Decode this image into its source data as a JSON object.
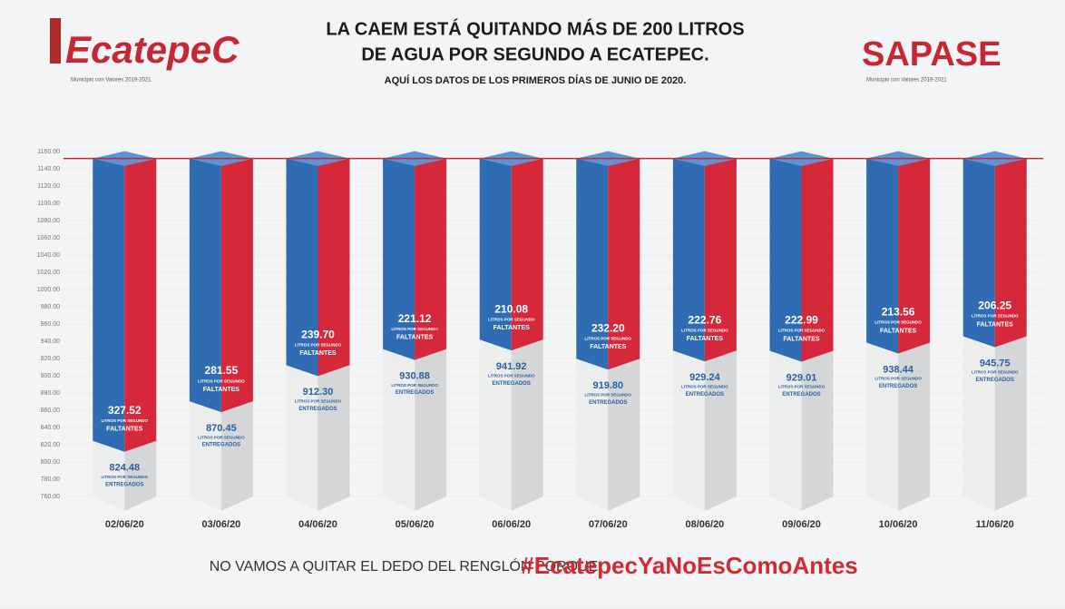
{
  "header": {
    "title_lines": [
      "LA CAEM ESTÁ QUITANDO MÁS DE 200 LITROS",
      "DE AGUA POR SEGUNDO A ECATEPEC."
    ],
    "subtitle": "AQUÍ LOS DATOS DE LOS PRIMEROS DÍAS DE JUNIO DE 2020.",
    "left_logo": {
      "name": "EcatepeC",
      "tagline": "Municipio con Valores 2019-2021"
    },
    "right_logo": {
      "name": "SAPASE",
      "tagline": "Municipio con Valores 2019-2021"
    }
  },
  "chart_data": {
    "type": "stacked-bar-3d",
    "categories": [
      "02/06/20",
      "03/06/20",
      "04/06/20",
      "05/06/20",
      "06/06/20",
      "07/06/20",
      "08/06/20",
      "09/06/20",
      "10/06/20",
      "11/06/20"
    ],
    "unit_label": "LITROS POR SEGUNDO",
    "series": [
      {
        "name": "ENTREGADOS",
        "color": "#d4d6d8",
        "values": [
          824.48,
          870.45,
          912.3,
          930.88,
          941.92,
          919.8,
          929.24,
          929.01,
          938.44,
          945.75
        ],
        "value_labels": [
          "824.48",
          "870.45",
          "912.30",
          "930.88",
          "941.92",
          "919.80",
          "929.24",
          "929.01",
          "938.44",
          "945.75"
        ]
      },
      {
        "name": "FALTANTES",
        "colors": [
          "#2f6cb4",
          "#d6283b"
        ],
        "values": [
          327.52,
          281.55,
          239.7,
          221.12,
          210.08,
          232.2,
          222.76,
          222.99,
          213.56,
          206.25
        ],
        "value_labels": [
          "327.52",
          "281.55",
          "239.70",
          "221.12",
          "210.08",
          "232.20",
          "222.76",
          "222.99",
          "213.56",
          "206.25"
        ]
      }
    ],
    "ylim": [
      760,
      1160
    ],
    "yticks": [
      {
        "value": 1160,
        "label": "1160.00"
      },
      {
        "value": 1140,
        "label": "1140.00"
      },
      {
        "value": 1120,
        "label": "1120.00"
      },
      {
        "value": 1100,
        "label": "1100.00"
      },
      {
        "value": 1080,
        "label": "1080.00"
      },
      {
        "value": 1060,
        "label": "1060.00"
      },
      {
        "value": 1040,
        "label": "1040.00"
      },
      {
        "value": 1020,
        "label": "1020.00"
      },
      {
        "value": 1000,
        "label": "1000.00"
      },
      {
        "value": 980,
        "label": "980.00"
      },
      {
        "value": 960,
        "label": "960.00"
      },
      {
        "value": 940,
        "label": "940.00"
      },
      {
        "value": 920,
        "label": "920.00"
      },
      {
        "value": 900,
        "label": "900.00"
      },
      {
        "value": 880,
        "label": "880.00"
      },
      {
        "value": 860,
        "label": "860.00"
      },
      {
        "value": 840,
        "label": "840.00"
      },
      {
        "value": 820,
        "label": "820.00"
      },
      {
        "value": 800,
        "label": "800.00"
      },
      {
        "value": 780,
        "label": "780.00"
      },
      {
        "value": 760,
        "label": "760.00"
      }
    ],
    "grid": true
  },
  "footer": {
    "text": "NO VAMOS A QUITAR EL DEDO DEL RENGLÓN PORQUE",
    "hashtag": "#EcatepecYaNoEsComoAntes"
  }
}
